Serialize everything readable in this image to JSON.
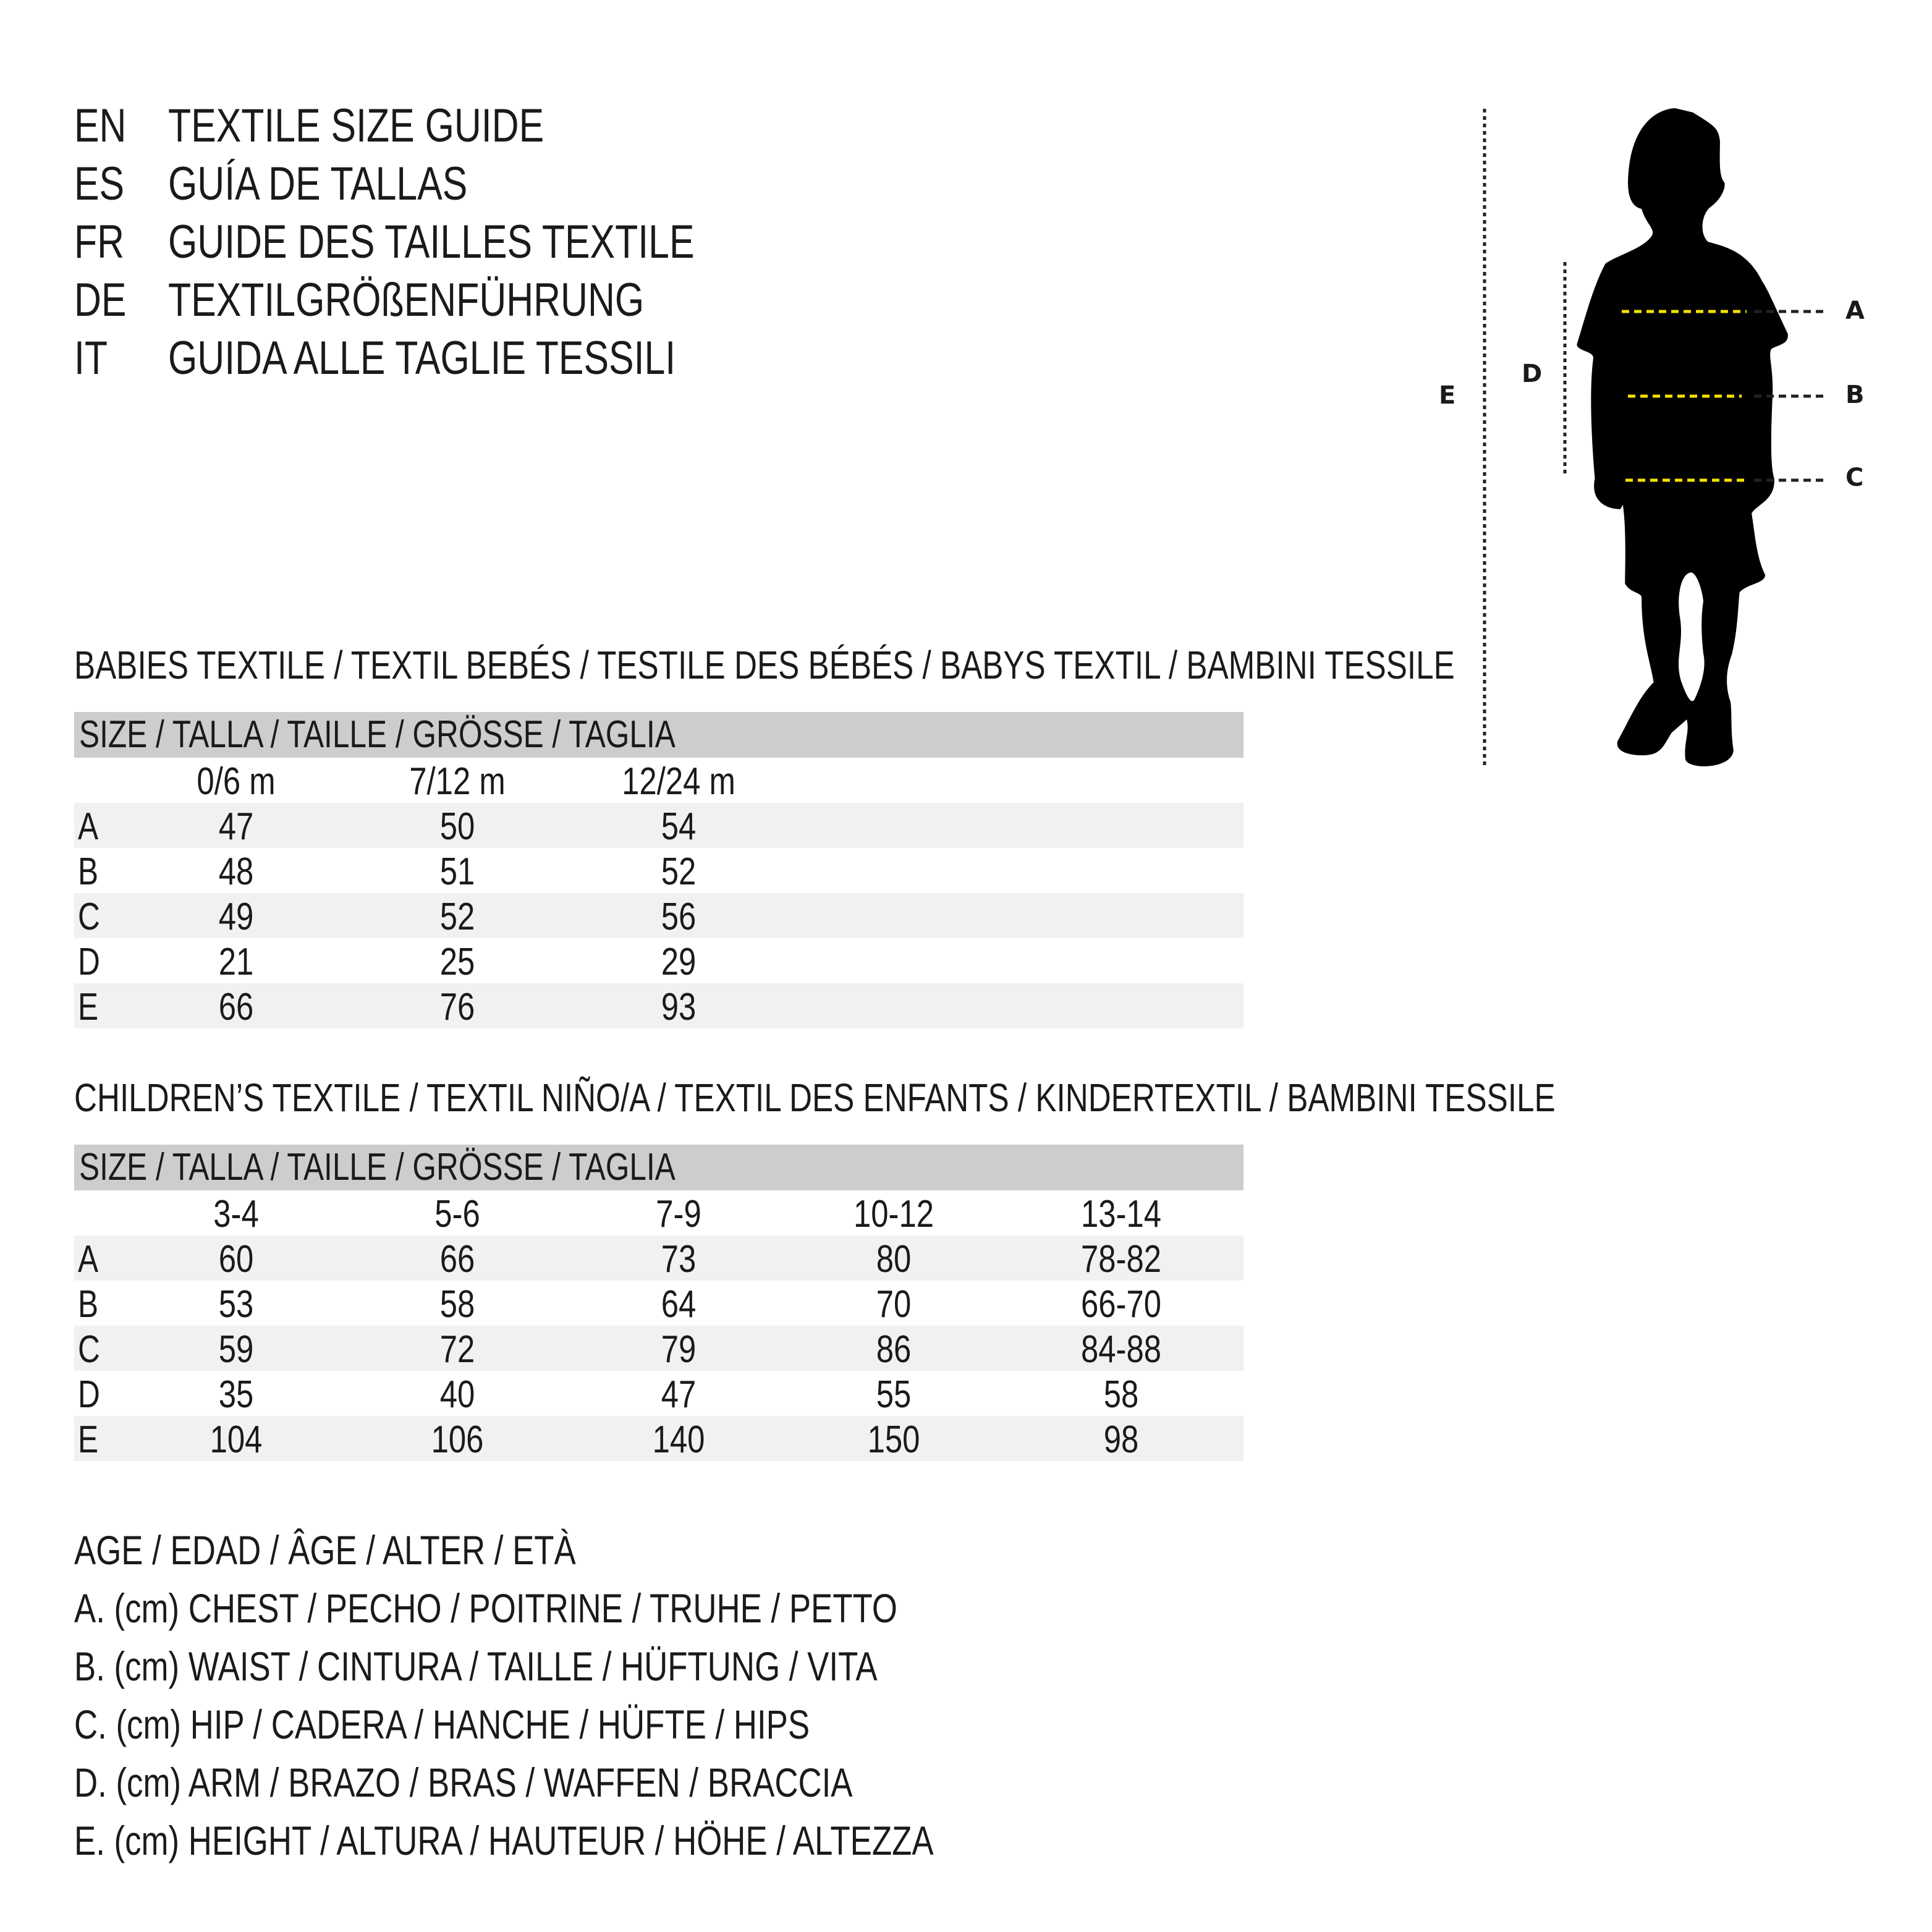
{
  "titles": [
    {
      "code": "EN",
      "text": "TEXTILE SIZE GUIDE"
    },
    {
      "code": "ES",
      "text": "GUÍA DE TALLAS"
    },
    {
      "code": "FR",
      "text": "GUIDE DES TAILLES TEXTILE"
    },
    {
      "code": "DE",
      "text": "TEXTILGRÖßENFÜHRUNG"
    },
    {
      "code": "IT",
      "text": "GUIDA ALLE TAGLIE TESSILI"
    }
  ],
  "figure": {
    "labels": {
      "A": "A",
      "B": "B",
      "C": "C",
      "D": "D",
      "E": "E"
    },
    "colors": {
      "silhouette": "#000000",
      "measure_line": "#f5e000",
      "guide_line": "#222222"
    }
  },
  "babies": {
    "heading": "BABIES TEXTILE / TEXTIL BEBÉS / TESTILE DES BÉBÉS / BABYS TEXTIL / BAMBINI TESSILE",
    "size_header": "SIZE / TALLA / TAILLE / GRÖSSE / TAGLIA",
    "columns": [
      "0/6 m",
      "7/12 m",
      "12/24 m"
    ],
    "rows": [
      {
        "label": "A",
        "values": [
          "47",
          "50",
          "54"
        ]
      },
      {
        "label": "B",
        "values": [
          "48",
          "51",
          "52"
        ]
      },
      {
        "label": "C",
        "values": [
          "49",
          "52",
          "56"
        ]
      },
      {
        "label": "D",
        "values": [
          "21",
          "25",
          "29"
        ]
      },
      {
        "label": "E",
        "values": [
          "66",
          "76",
          "93"
        ]
      }
    ]
  },
  "children": {
    "heading": "CHILDREN’S TEXTILE / TEXTIL NIÑO/A / TEXTIL DES ENFANTS / KINDERTEXTIL / BAMBINI TESSILE",
    "size_header": "SIZE / TALLA / TAILLE / GRÖSSE / TAGLIA",
    "columns": [
      "3-4",
      "5-6",
      "7-9",
      "10-12",
      "13-14"
    ],
    "rows": [
      {
        "label": "A",
        "values": [
          "60",
          "66",
          "73",
          "80",
          "78-82"
        ]
      },
      {
        "label": "B",
        "values": [
          "53",
          "58",
          "64",
          "70",
          "66-70"
        ]
      },
      {
        "label": "C",
        "values": [
          "59",
          "72",
          "79",
          "86",
          "84-88"
        ]
      },
      {
        "label": "D",
        "values": [
          "35",
          "40",
          "47",
          "55",
          "58"
        ]
      },
      {
        "label": "E",
        "values": [
          "104",
          "106",
          "140",
          "150",
          "98"
        ]
      }
    ]
  },
  "legend": [
    "AGE / EDAD / ÂGE / ALTER / ETÀ",
    "A. (cm) CHEST / PECHO / POITRINE / TRUHE / PETTO",
    "B. (cm) WAIST / CINTURA / TAILLE / HÜFTUNG / VITA",
    "C. (cm) HIP / CADERA / HANCHE / HÜFTE / HIPS",
    "D. (cm) ARM / BRAZO / BRAS / WAFFEN / BRACCIA",
    "E. (cm) HEIGHT / ALTURA / HAUTEUR / HÖHE / ALTEZZA"
  ]
}
